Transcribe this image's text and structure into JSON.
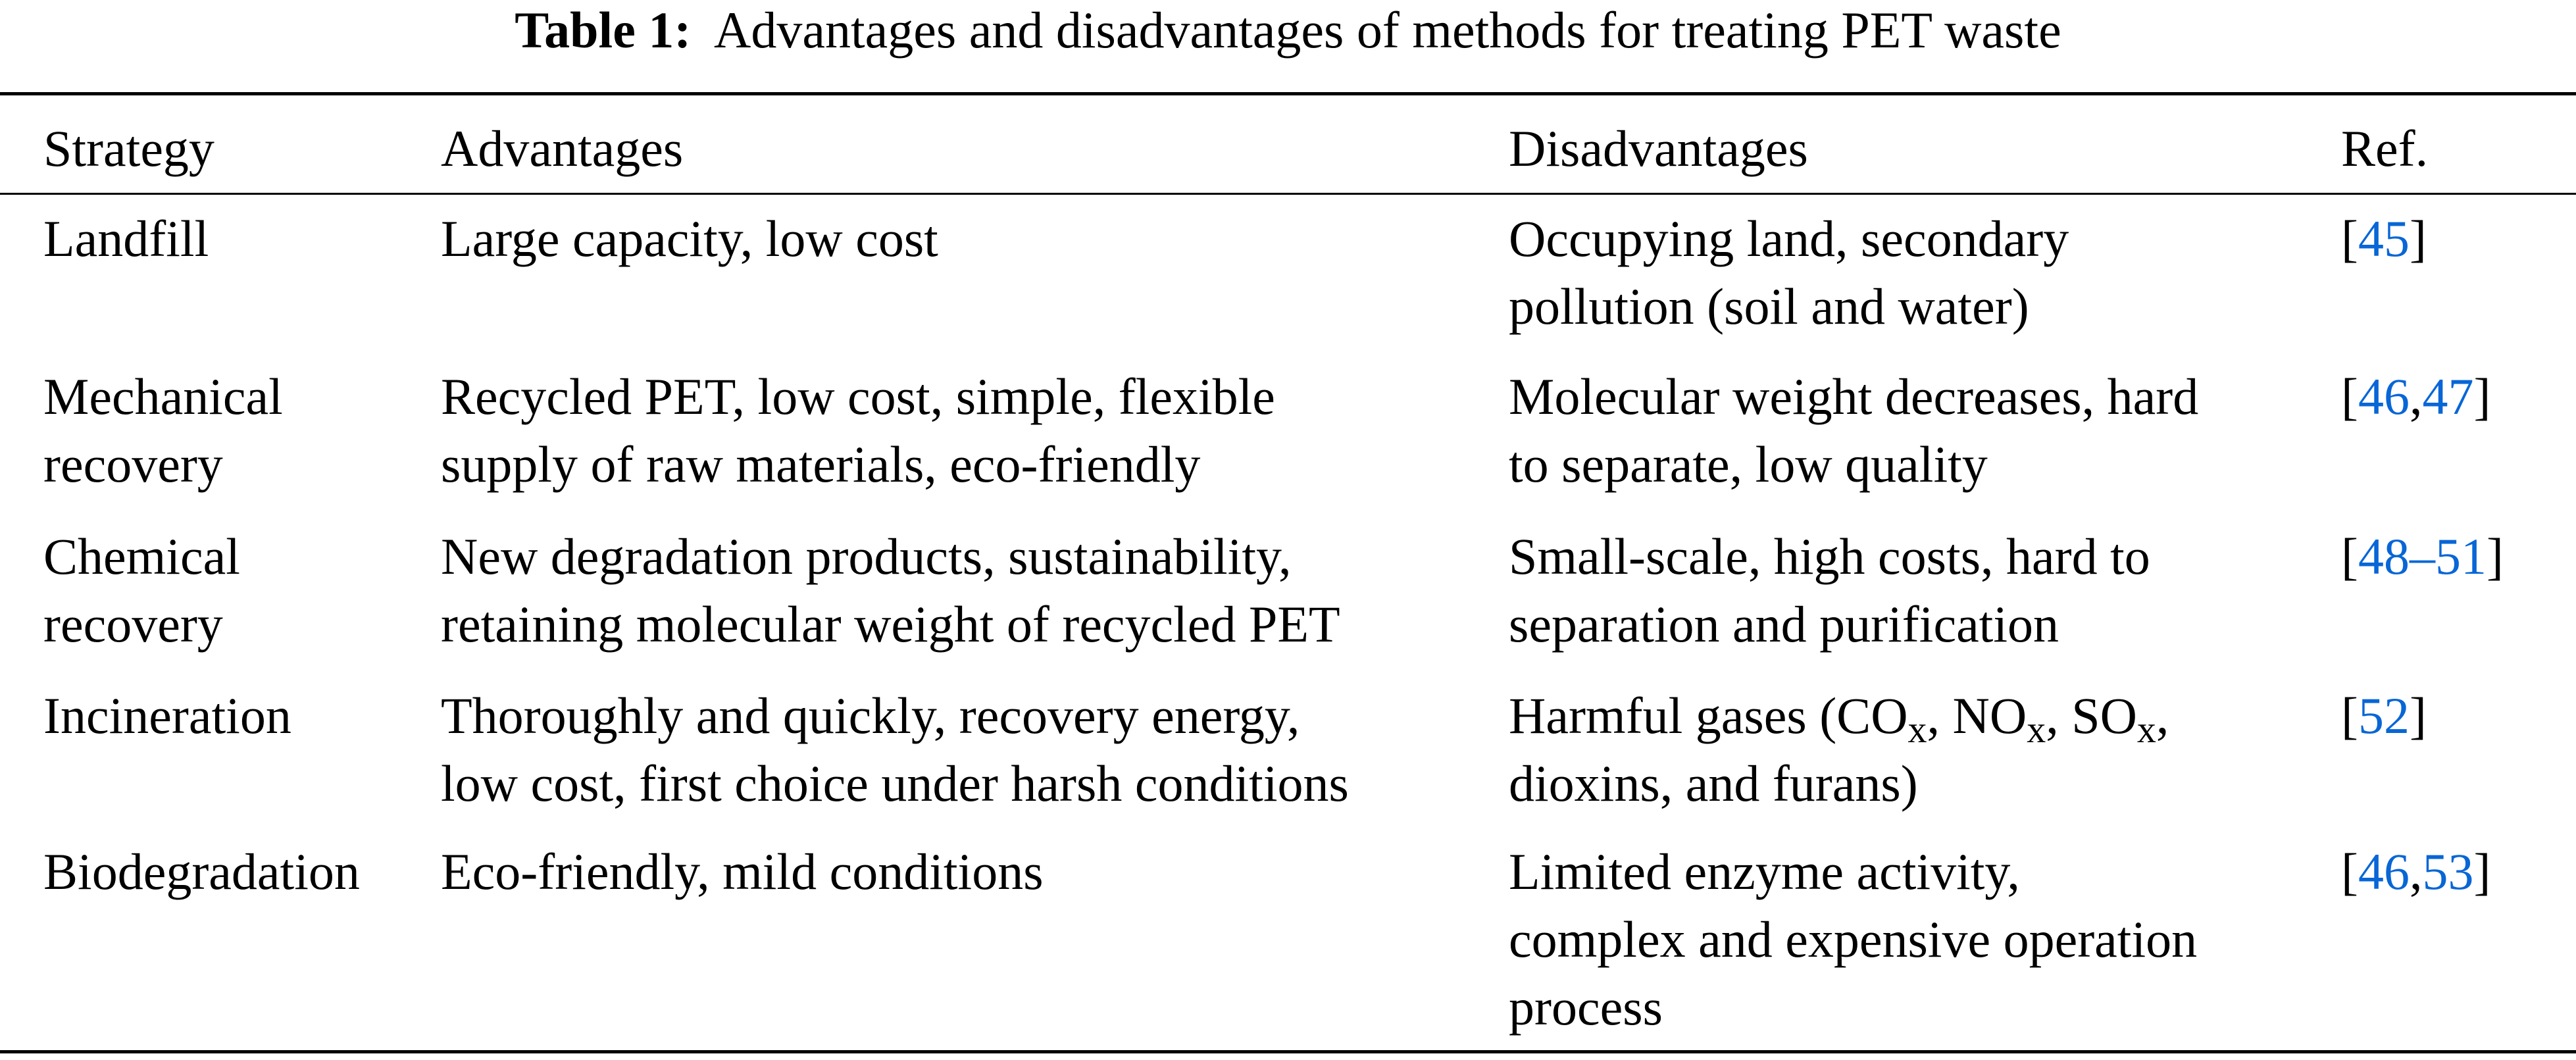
{
  "title": {
    "label": "Table 1:",
    "text": "Advantages and disadvantages of methods for treating PET waste"
  },
  "link_color": "#0866D6",
  "headers": [
    "Strategy",
    "Advantages",
    "Disadvantages",
    "Ref."
  ],
  "rows": [
    {
      "strategy": [
        "Landfill"
      ],
      "advantages": [
        "Large capacity, low cost"
      ],
      "disadvantages": [
        [
          {
            "t": "Occupying land, secondary"
          }
        ],
        [
          {
            "t": "pollution (soil and water)"
          }
        ]
      ],
      "refs": [
        "45"
      ]
    },
    {
      "strategy": [
        "Mechanical",
        "recovery"
      ],
      "advantages": [
        "Recycled PET, low cost, simple, flexible",
        "supply of raw materials, eco-friendly"
      ],
      "disadvantages": [
        [
          {
            "t": "Molecular weight decreases, hard"
          }
        ],
        [
          {
            "t": "to separate, low quality"
          }
        ]
      ],
      "refs": [
        "46",
        "47"
      ]
    },
    {
      "strategy": [
        "Chemical",
        "recovery"
      ],
      "advantages": [
        "New degradation products, sustainability,",
        "retaining molecular weight of recycled PET"
      ],
      "disadvantages": [
        [
          {
            "t": "Small-scale, high costs, hard to"
          }
        ],
        [
          {
            "t": "separation and purification"
          }
        ]
      ],
      "refs": [
        "48–51"
      ]
    },
    {
      "strategy": [
        "Incineration"
      ],
      "advantages": [
        "Thoroughly and quickly, recovery energy,",
        "low cost, first choice under harsh conditions"
      ],
      "disadvantages": [
        [
          {
            "t": "Harmful gases (CO"
          },
          {
            "sub": "x"
          },
          {
            "t": ", NO"
          },
          {
            "sub": "x"
          },
          {
            "t": ", SO"
          },
          {
            "sub": "x"
          },
          {
            "t": ","
          }
        ],
        [
          {
            "t": "dioxins, and furans)"
          }
        ]
      ],
      "refs": [
        "52"
      ]
    },
    {
      "strategy": [
        "Biodegradation"
      ],
      "advantages": [
        "Eco-friendly, mild conditions"
      ],
      "disadvantages": [
        [
          {
            "t": "Limited enzyme activity,"
          }
        ],
        [
          {
            "t": "complex and expensive operation"
          }
        ],
        [
          {
            "t": "process"
          }
        ]
      ],
      "refs": [
        "46",
        "53"
      ]
    }
  ]
}
